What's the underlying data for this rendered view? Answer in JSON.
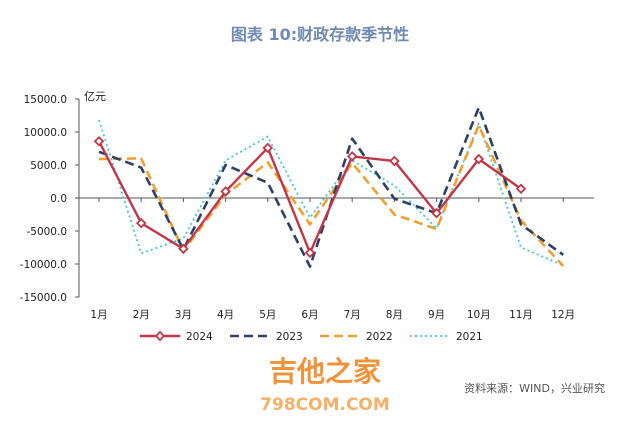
{
  "chart_data": {
    "type": "line",
    "title": "图表 10:财政存款季节性",
    "ylabel": "亿元",
    "categories": [
      "1月",
      "2月",
      "3月",
      "4月",
      "5月",
      "6月",
      "7月",
      "8月",
      "9月",
      "10月",
      "11月",
      "12月"
    ],
    "ylim": [
      -15000,
      15000
    ],
    "yticks": [
      "15000.0",
      "10000.0",
      "5000.0",
      "0.0",
      "-5000.0",
      "-10000.0",
      "-15000.0"
    ],
    "ytick_values": [
      15000,
      10000,
      5000,
      0,
      -5000,
      -10000,
      -15000
    ],
    "series": [
      {
        "name": "2024",
        "color": "#c0374a",
        "style": "solid-diamond",
        "values": [
          8600,
          -3800,
          -7700,
          1000,
          7600,
          -8300,
          6300,
          5600,
          -2300,
          5900,
          1400,
          null
        ]
      },
      {
        "name": "2023",
        "color": "#2e4066",
        "style": "dashed",
        "values": [
          7000,
          4600,
          -7800,
          5000,
          2300,
          -10400,
          9000,
          -100,
          -2300,
          13700,
          -4000,
          -8600
        ]
      },
      {
        "name": "2022",
        "color": "#f0a030",
        "style": "dashed",
        "values": [
          5900,
          6000,
          -8000,
          500,
          5400,
          -4000,
          5300,
          -2500,
          -4700,
          11000,
          -3400,
          -10300
        ]
      },
      {
        "name": "2021",
        "color": "#46c6d1",
        "style": "dotted",
        "values": [
          11800,
          -8400,
          -6100,
          5700,
          9300,
          -3000,
          5700,
          1900,
          -4600,
          11300,
          -7500,
          -10200
        ]
      }
    ],
    "grid": false,
    "legend_position": "bottom"
  },
  "source": "资料来源：WIND，兴业研究",
  "watermark": {
    "text": "吉他之家",
    "url": "798COM.COM"
  }
}
